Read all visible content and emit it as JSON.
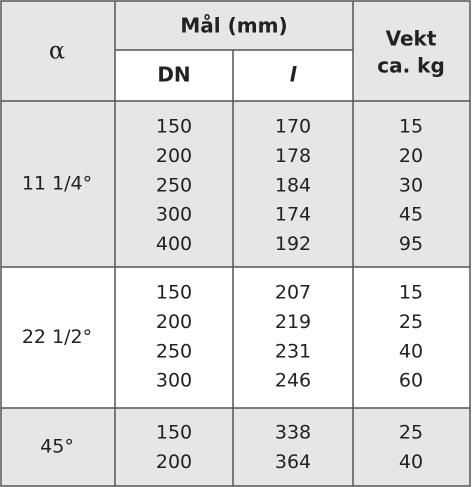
{
  "header": {
    "alpha": "α",
    "dimensions": "Mål (mm)",
    "dn": "DN",
    "l": "l",
    "weight": [
      "Vekt",
      "ca. kg"
    ]
  },
  "groups": [
    {
      "angle": "11 1/4°",
      "rows": [
        [
          150,
          170,
          15
        ],
        [
          200,
          178,
          20
        ],
        [
          250,
          184,
          30
        ],
        [
          300,
          174,
          45
        ],
        [
          400,
          192,
          95
        ]
      ]
    },
    {
      "angle": "22 1/2°",
      "rows": [
        [
          150,
          207,
          15
        ],
        [
          200,
          219,
          25
        ],
        [
          250,
          231,
          40
        ],
        [
          300,
          246,
          60
        ]
      ]
    },
    {
      "angle": "45°",
      "rows": [
        [
          150,
          338,
          25
        ],
        [
          200,
          364,
          40
        ]
      ]
    }
  ]
}
